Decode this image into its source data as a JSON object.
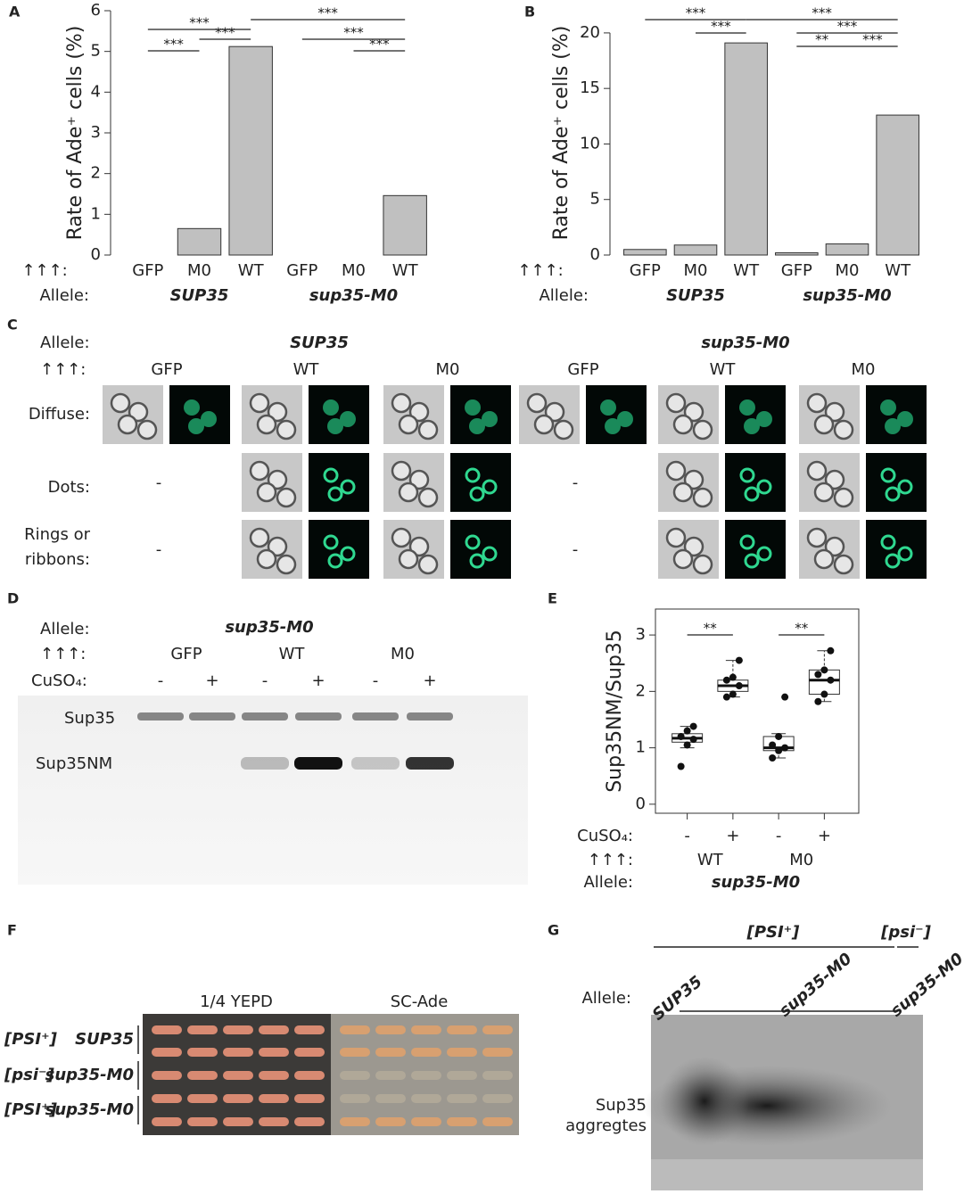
{
  "panel_labels": [
    "A",
    "B",
    "C",
    "D",
    "E",
    "F",
    "G"
  ],
  "chart_data": [
    {
      "type": "bar",
      "ylabel": "Rate of Ade⁺ cells (%)",
      "categories": [
        "GFP",
        "M0",
        "WT",
        "GFP",
        "M0",
        "WT"
      ],
      "values": [
        0,
        0.65,
        5.12,
        0,
        0,
        1.46
      ],
      "color": "#c0c0c0",
      "ylim": [
        0,
        6
      ],
      "yticks": [
        0,
        1,
        2,
        3,
        4,
        5,
        6
      ],
      "row_label": "↑↑↑:",
      "group_label": "Allele:",
      "groups": [
        "SUP35",
        "sup35-M0"
      ],
      "significance": [
        {
          "label": "***",
          "pair": [
            0,
            1
          ]
        },
        {
          "label": "***",
          "pair": [
            1,
            2
          ]
        },
        {
          "label": "***",
          "pair": [
            0,
            2
          ]
        },
        {
          "label": "***",
          "pair": [
            4,
            5
          ]
        },
        {
          "label": "***",
          "pair": [
            3,
            5
          ]
        },
        {
          "label": "***",
          "pair": [
            2,
            5
          ]
        }
      ]
    },
    {
      "type": "bar",
      "ylabel": "Rate of Ade⁺ cells (%)",
      "categories": [
        "GFP",
        "M0",
        "WT",
        "GFP",
        "M0",
        "WT"
      ],
      "values": [
        0.5,
        0.9,
        19.1,
        0.2,
        1.0,
        12.6
      ],
      "color": "#c0c0c0",
      "ylim": [
        0,
        22
      ],
      "yticks": [
        0,
        5,
        10,
        15,
        20
      ],
      "row_label": "↑↑↑:",
      "group_label": "Allele:",
      "groups": [
        "SUP35",
        "sup35-M0"
      ],
      "significance": [
        {
          "label": "***",
          "pair": [
            0,
            2
          ]
        },
        {
          "label": "***",
          "pair": [
            1,
            2
          ]
        },
        {
          "label": "***",
          "pair": [
            2,
            5
          ]
        },
        {
          "label": "***",
          "pair": [
            3,
            5
          ]
        },
        {
          "label": "**",
          "pair": [
            3,
            4
          ]
        },
        {
          "label": "***",
          "pair": [
            4,
            5
          ]
        }
      ]
    },
    {
      "type": "box",
      "ylabel": "Sup35NM/Sup35",
      "categories": [
        "-",
        "+",
        "-",
        "+"
      ],
      "x_label": "CuSO₄:",
      "subgroups": [
        "WT",
        "M0"
      ],
      "row_label": "↑↑↑:",
      "group_label": "Allele:",
      "groups": [
        "sup35-M0"
      ],
      "ylim": [
        -0.16,
        3.46
      ],
      "yticks": [
        0,
        1,
        2,
        3
      ],
      "boxes": [
        {
          "whisker_low": 1.0,
          "q1": 1.1,
          "median": 1.17,
          "q3": 1.25,
          "whisker_high": 1.38,
          "points": [
            0.67,
            1.05,
            1.15,
            1.2,
            1.3,
            1.38
          ]
        },
        {
          "whisker_low": 1.9,
          "q1": 2.0,
          "median": 2.1,
          "q3": 2.2,
          "whisker_high": 2.55,
          "points": [
            1.9,
            1.95,
            2.1,
            2.2,
            2.25,
            2.55
          ]
        },
        {
          "whisker_low": 0.82,
          "q1": 0.95,
          "median": 1.0,
          "q3": 1.2,
          "whisker_high": 1.25,
          "points": [
            0.82,
            0.95,
            1.0,
            1.05,
            1.2,
            1.9
          ]
        },
        {
          "whisker_low": 1.82,
          "q1": 1.95,
          "median": 2.2,
          "q3": 2.38,
          "whisker_high": 2.72,
          "points": [
            1.82,
            1.95,
            2.2,
            2.3,
            2.38,
            2.72
          ]
        }
      ],
      "significance": [
        {
          "label": "**",
          "pair": [
            0,
            1
          ]
        },
        {
          "label": "**",
          "pair": [
            2,
            3
          ]
        }
      ]
    }
  ],
  "panel_c": {
    "allele_label": "Allele:",
    "alleles": [
      "SUP35",
      "sup35-M0"
    ],
    "row_label": "↑↑↑:",
    "columns": [
      "GFP",
      "WT",
      "M0",
      "GFP",
      "WT",
      "M0"
    ],
    "rows": [
      "Diffuse:",
      "Dots:",
      "Rings or",
      "ribbons:"
    ],
    "absent": [
      "-",
      "-",
      "-",
      "-"
    ]
  },
  "panel_d": {
    "allele_label": "Allele:",
    "allele": "sup35-M0",
    "row_label": "↑↑↑:",
    "constructs": [
      "GFP",
      "WT",
      "M0"
    ],
    "treatment_label": "CuSO₄:",
    "treatments": [
      "-",
      "+",
      "-",
      "+",
      "-",
      "+"
    ],
    "bands": [
      "Sup35",
      "Sup35NM"
    ]
  },
  "panel_f": {
    "media": [
      "1/4 YEPD",
      "SC-Ade"
    ],
    "rows": [
      {
        "prion": "[PSI⁺]",
        "allele": "SUP35"
      },
      {
        "prion": "[psi⁻]",
        "allele": "sup35-M0"
      },
      {
        "prion": "[PSI⁺]",
        "allele": "sup35-M0"
      }
    ]
  },
  "panel_g": {
    "prions": [
      "[PSI⁺]",
      "[psi⁻]"
    ],
    "allele_label": "Allele:",
    "alleles": [
      "SUP35",
      "sup35-M0",
      "sup35-M0"
    ],
    "band": [
      "Sup35",
      "aggregtes"
    ]
  }
}
